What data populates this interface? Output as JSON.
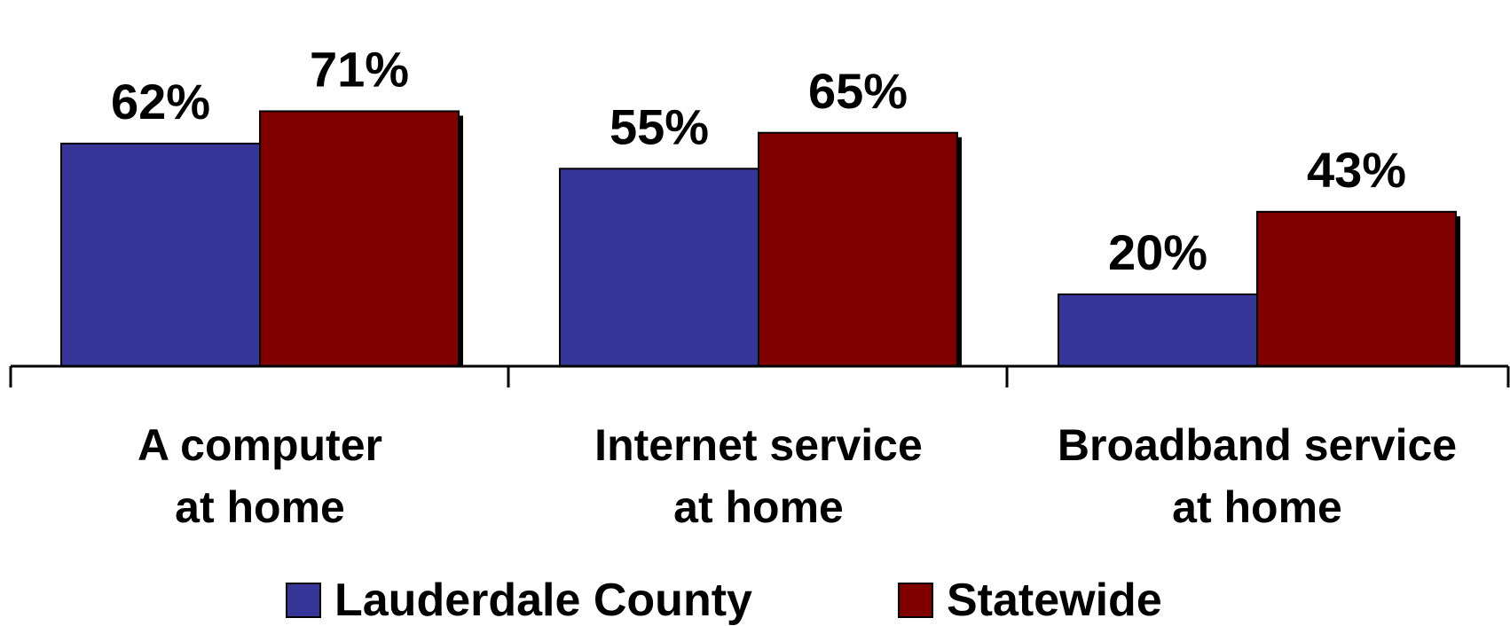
{
  "chart_data": {
    "type": "bar",
    "categories": [
      [
        "A computer",
        "at home"
      ],
      [
        "Internet service",
        "at home"
      ],
      [
        "Broadband service",
        "at home"
      ]
    ],
    "series": [
      {
        "name": "Lauderdale County",
        "color": "#363699",
        "values": [
          62,
          55,
          20
        ],
        "labels": [
          "62%",
          "55%",
          "20%"
        ]
      },
      {
        "name": "Statewide",
        "color": "#800000",
        "values": [
          71,
          65,
          43
        ],
        "labels": [
          "71%",
          "65%",
          "43%"
        ]
      }
    ],
    "ylim": [
      0,
      100
    ],
    "grid": false,
    "legend_position": "bottom"
  }
}
